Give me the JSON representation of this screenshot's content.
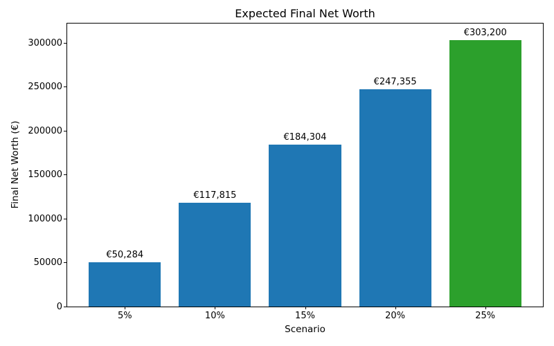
{
  "chart_data": {
    "type": "bar",
    "title": "Expected Final Net Worth",
    "xlabel": "Scenario",
    "ylabel": "Final Net Worth (€)",
    "categories": [
      "5%",
      "10%",
      "15%",
      "20%",
      "25%"
    ],
    "values": [
      50284,
      117815,
      184304,
      247355,
      303200
    ],
    "bar_value_labels": [
      "€50,284",
      "€117,815",
      "€184,304",
      "€247,355",
      "€303,200"
    ],
    "bar_colors": [
      "#1f77b4",
      "#1f77b4",
      "#1f77b4",
      "#1f77b4",
      "#2ca02c"
    ],
    "yticks": [
      0,
      50000,
      100000,
      150000,
      200000,
      250000,
      300000
    ],
    "ytick_labels": [
      "0",
      "50000",
      "100000",
      "150000",
      "200000",
      "250000",
      "300000"
    ],
    "ylim": [
      0,
      322000
    ],
    "grid": false,
    "legend": "none",
    "spine_color": "#000000",
    "background_color": "#ffffff"
  }
}
